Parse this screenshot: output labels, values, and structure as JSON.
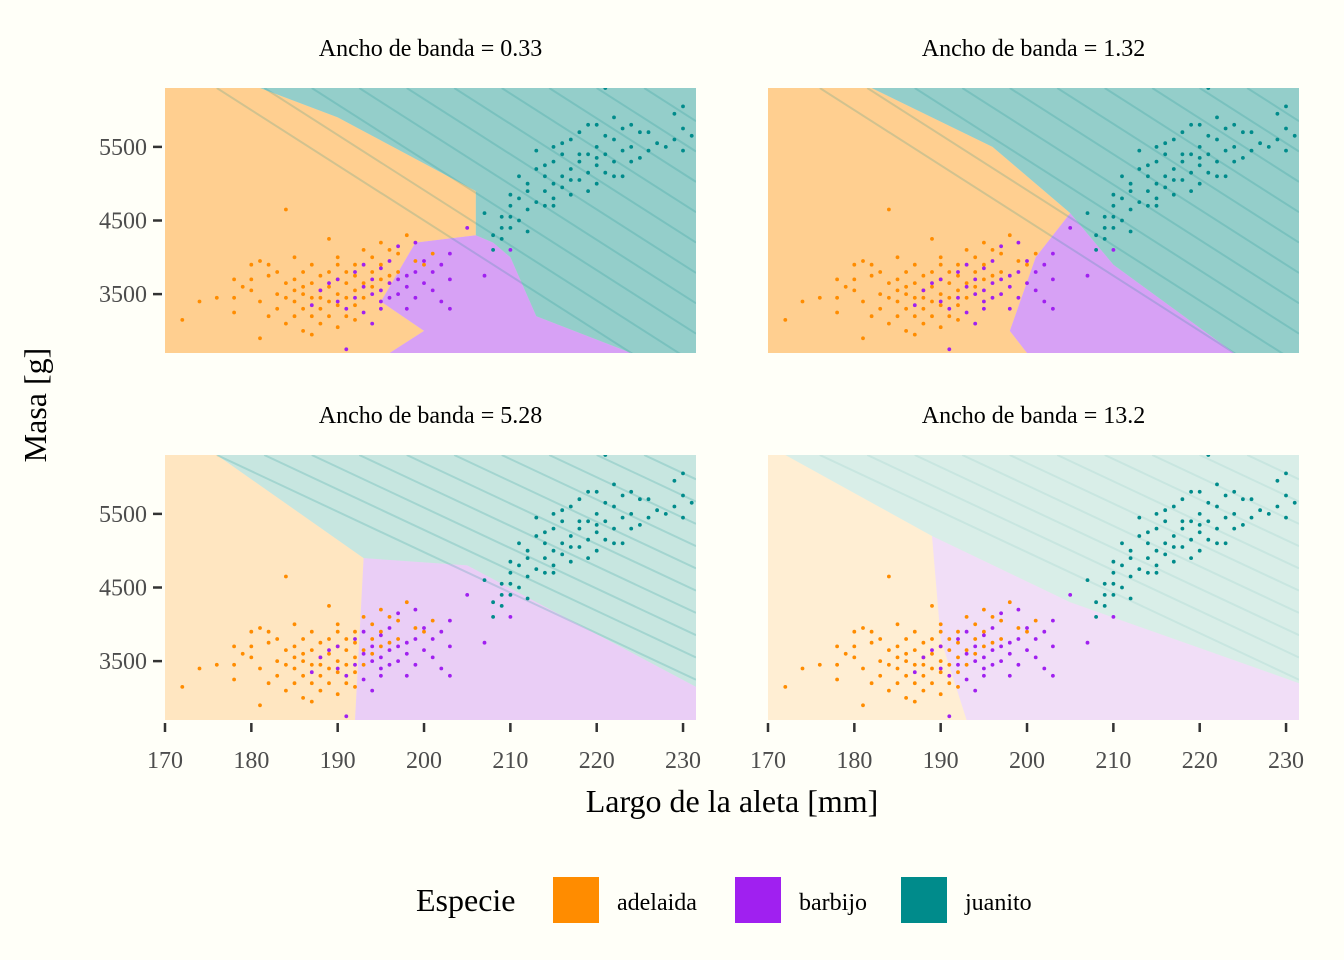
{
  "colors": {
    "background": "#fffff8",
    "adelaida": "#ff8c00",
    "barbijo": "#a020f0",
    "juanito": "#008b8b"
  },
  "chart_data": {
    "type": "scatter",
    "xlabel": "Largo de la aleta [mm]",
    "ylabel": "Masa [g]",
    "xlim": [
      170,
      231.5
    ],
    "ylim": [
      2700,
      6300
    ],
    "x_ticks": [
      170,
      180,
      190,
      200,
      210,
      220,
      230
    ],
    "y_ticks": [
      3500,
      4500,
      5500
    ],
    "grid": false,
    "legend": {
      "position": "bottom",
      "title": "Especie",
      "entries": [
        "adelaida",
        "barbijo",
        "juanito"
      ]
    },
    "panels": [
      {
        "title": "Ancho de banda = 0.33",
        "bandwidth": 0.33
      },
      {
        "title": "Ancho de banda = 1.32",
        "bandwidth": 1.32
      },
      {
        "title": "Ancho de banda = 5.28",
        "bandwidth": 5.28
      },
      {
        "title": "Ancho de banda = 13.2",
        "bandwidth": 13.2
      }
    ],
    "series": [
      {
        "name": "adelaida",
        "points": [
          [
            172,
            3150
          ],
          [
            174,
            3400
          ],
          [
            176,
            3450
          ],
          [
            178,
            3250
          ],
          [
            178,
            3700
          ],
          [
            180,
            3550
          ],
          [
            180,
            3700
          ],
          [
            180,
            3900
          ],
          [
            181,
            3400
          ],
          [
            181,
            2900
          ],
          [
            182,
            3750
          ],
          [
            182,
            3200
          ],
          [
            183,
            3500
          ],
          [
            183,
            3800
          ],
          [
            184,
            3650
          ],
          [
            184,
            3450
          ],
          [
            184,
            3100
          ],
          [
            185,
            3400
          ],
          [
            185,
            3700
          ],
          [
            185,
            3550
          ],
          [
            185,
            3200
          ],
          [
            186,
            3800
          ],
          [
            186,
            3500
          ],
          [
            186,
            3300
          ],
          [
            186,
            3000
          ],
          [
            187,
            3450
          ],
          [
            187,
            3650
          ],
          [
            187,
            3200
          ],
          [
            187,
            3900
          ],
          [
            187,
            2950
          ],
          [
            188,
            3550
          ],
          [
            188,
            3300
          ],
          [
            188,
            3750
          ],
          [
            188,
            3450
          ],
          [
            189,
            3400
          ],
          [
            189,
            3600
          ],
          [
            189,
            3200
          ],
          [
            189,
            3800
          ],
          [
            189,
            4250
          ],
          [
            190,
            3500
          ],
          [
            190,
            3700
          ],
          [
            190,
            3900
          ],
          [
            190,
            3350
          ],
          [
            190,
            3050
          ],
          [
            190,
            4000
          ],
          [
            191,
            3650
          ],
          [
            191,
            3450
          ],
          [
            191,
            3800
          ],
          [
            191,
            3200
          ],
          [
            192,
            3550
          ],
          [
            192,
            3750
          ],
          [
            192,
            3350
          ],
          [
            192,
            3900
          ],
          [
            193,
            3650
          ],
          [
            193,
            3450
          ],
          [
            193,
            4100
          ],
          [
            194,
            3800
          ],
          [
            194,
            3600
          ],
          [
            194,
            4000
          ],
          [
            195,
            3700
          ],
          [
            195,
            4200
          ],
          [
            195,
            3900
          ],
          [
            196,
            3750
          ],
          [
            196,
            4100
          ],
          [
            197,
            4050
          ],
          [
            197,
            3800
          ],
          [
            198,
            4300
          ],
          [
            199,
            3950
          ],
          [
            200,
            3900
          ],
          [
            201,
            4050
          ],
          [
            184,
            4650
          ],
          [
            181,
            3950
          ],
          [
            183,
            3300
          ],
          [
            186,
            3600
          ],
          [
            188,
            3100
          ],
          [
            192,
            3150
          ],
          [
            178,
            3450
          ],
          [
            179,
            3600
          ],
          [
            182,
            3900
          ],
          [
            185,
            4000
          ]
        ]
      },
      {
        "name": "barbijo",
        "points": [
          [
            187,
            3350
          ],
          [
            188,
            3550
          ],
          [
            189,
            3650
          ],
          [
            190,
            3400
          ],
          [
            190,
            3700
          ],
          [
            191,
            3300
          ],
          [
            192,
            3450
          ],
          [
            192,
            3800
          ],
          [
            193,
            3600
          ],
          [
            193,
            3250
          ],
          [
            193,
            3900
          ],
          [
            194,
            3500
          ],
          [
            194,
            3700
          ],
          [
            195,
            3550
          ],
          [
            195,
            3300
          ],
          [
            195,
            3850
          ],
          [
            196,
            3650
          ],
          [
            196,
            3450
          ],
          [
            196,
            3950
          ],
          [
            197,
            3700
          ],
          [
            197,
            3500
          ],
          [
            198,
            3750
          ],
          [
            198,
            3600
          ],
          [
            198,
            3300
          ],
          [
            199,
            3800
          ],
          [
            199,
            3450
          ],
          [
            200,
            3650
          ],
          [
            200,
            3950
          ],
          [
            201,
            3800
          ],
          [
            201,
            3550
          ],
          [
            202,
            3400
          ],
          [
            202,
            3900
          ],
          [
            203,
            4050
          ],
          [
            205,
            4400
          ],
          [
            203,
            3700
          ],
          [
            194,
            3100
          ],
          [
            191,
            2750
          ],
          [
            207,
            3750
          ],
          [
            210,
            4100
          ],
          [
            199,
            4200
          ],
          [
            197,
            4150
          ],
          [
            195,
            3400
          ],
          [
            203,
            3300
          ]
        ]
      },
      {
        "name": "juanito",
        "points": [
          [
            207,
            4600
          ],
          [
            208,
            4300
          ],
          [
            209,
            4250
          ],
          [
            209,
            4550
          ],
          [
            210,
            4400
          ],
          [
            210,
            4700
          ],
          [
            210,
            4850
          ],
          [
            211,
            4500
          ],
          [
            211,
            4800
          ],
          [
            212,
            4650
          ],
          [
            212,
            5000
          ],
          [
            213,
            4750
          ],
          [
            213,
            5200
          ],
          [
            214,
            4900
          ],
          [
            214,
            5100
          ],
          [
            214,
            4700
          ],
          [
            215,
            5000
          ],
          [
            215,
            5300
          ],
          [
            215,
            4800
          ],
          [
            215,
            5500
          ],
          [
            216,
            5100
          ],
          [
            216,
            4950
          ],
          [
            216,
            5400
          ],
          [
            217,
            5200
          ],
          [
            217,
            5600
          ],
          [
            217,
            4850
          ],
          [
            218,
            5300
          ],
          [
            218,
            5050
          ],
          [
            218,
            5700
          ],
          [
            219,
            5400
          ],
          [
            219,
            5150
          ],
          [
            219,
            4900
          ],
          [
            220,
            5500
          ],
          [
            220,
            5250
          ],
          [
            220,
            5800
          ],
          [
            220,
            5000
          ],
          [
            221,
            5400
          ],
          [
            221,
            5650
          ],
          [
            221,
            6300
          ],
          [
            221,
            5150
          ],
          [
            222,
            5600
          ],
          [
            222,
            5300
          ],
          [
            222,
            5900
          ],
          [
            223,
            5450
          ],
          [
            223,
            5750
          ],
          [
            223,
            5100
          ],
          [
            224,
            5500
          ],
          [
            224,
            5800
          ],
          [
            225,
            5700
          ],
          [
            225,
            5350
          ],
          [
            226,
            5450
          ],
          [
            227,
            5550
          ],
          [
            228,
            5500
          ],
          [
            229,
            5600
          ],
          [
            229,
            5950
          ],
          [
            230,
            5750
          ],
          [
            230,
            5450
          ],
          [
            230,
            6050
          ],
          [
            231,
            5650
          ],
          [
            208,
            4100
          ],
          [
            210,
            4550
          ],
          [
            212,
            4900
          ],
          [
            214,
            5250
          ],
          [
            216,
            5550
          ],
          [
            218,
            5400
          ],
          [
            220,
            5350
          ],
          [
            222,
            5100
          ],
          [
            224,
            5300
          ],
          [
            226,
            5700
          ],
          [
            219,
            5800
          ],
          [
            213,
            5450
          ],
          [
            211,
            5100
          ],
          [
            217,
            5050
          ],
          [
            215,
            4700
          ],
          [
            209,
            4400
          ],
          [
            212,
            4350
          ]
        ]
      }
    ]
  }
}
